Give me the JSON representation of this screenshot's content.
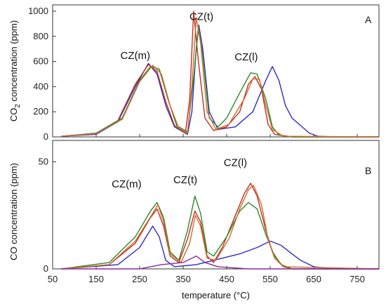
{
  "chart_data": [
    {
      "panel": "A",
      "type": "line",
      "ylabel_parts": [
        "CO",
        "2",
        " concentration (ppm)"
      ],
      "ylim": [
        0,
        1050
      ],
      "yticks": [
        0,
        200,
        400,
        600,
        800,
        1000
      ],
      "xlim": [
        50,
        800
      ],
      "annotations": [
        {
          "text": "CZ(m)",
          "x": 240,
          "y": 620
        },
        {
          "text": "CZ(t)",
          "x": 392,
          "y": 930
        },
        {
          "text": "CZ(l)",
          "x": 495,
          "y": 610
        }
      ],
      "series": [
        {
          "color": "#2c2cc8",
          "points": [
            [
              70,
              5
            ],
            [
              150,
              20
            ],
            [
              200,
              120
            ],
            [
              240,
              400
            ],
            [
              270,
              585
            ],
            [
              290,
              500
            ],
            [
              310,
              250
            ],
            [
              330,
              80
            ],
            [
              360,
              20
            ],
            [
              370,
              200
            ],
            [
              380,
              700
            ],
            [
              386,
              890
            ],
            [
              395,
              700
            ],
            [
              410,
              200
            ],
            [
              430,
              60
            ],
            [
              470,
              80
            ],
            [
              510,
              200
            ],
            [
              540,
              450
            ],
            [
              555,
              560
            ],
            [
              570,
              450
            ],
            [
              585,
              250
            ],
            [
              600,
              150
            ],
            [
              620,
              90
            ],
            [
              640,
              30
            ],
            [
              660,
              5
            ],
            [
              700,
              0
            ],
            [
              800,
              0
            ]
          ]
        },
        {
          "color": "#c03020",
          "points": [
            [
              70,
              5
            ],
            [
              150,
              25
            ],
            [
              200,
              130
            ],
            [
              240,
              420
            ],
            [
              270,
              575
            ],
            [
              290,
              520
            ],
            [
              310,
              280
            ],
            [
              330,
              90
            ],
            [
              355,
              30
            ],
            [
              365,
              300
            ],
            [
              374,
              1000
            ],
            [
              385,
              600
            ],
            [
              400,
              150
            ],
            [
              420,
              50
            ],
            [
              450,
              80
            ],
            [
              480,
              200
            ],
            [
              500,
              420
            ],
            [
              515,
              480
            ],
            [
              530,
              380
            ],
            [
              545,
              100
            ],
            [
              560,
              20
            ],
            [
              600,
              0
            ],
            [
              800,
              0
            ]
          ]
        },
        {
          "color": "#2a8a2a",
          "points": [
            [
              70,
              5
            ],
            [
              150,
              30
            ],
            [
              210,
              150
            ],
            [
              250,
              450
            ],
            [
              275,
              560
            ],
            [
              295,
              540
            ],
            [
              315,
              300
            ],
            [
              335,
              90
            ],
            [
              360,
              40
            ],
            [
              375,
              500
            ],
            [
              385,
              880
            ],
            [
              395,
              650
            ],
            [
              410,
              150
            ],
            [
              430,
              80
            ],
            [
              450,
              150
            ],
            [
              480,
              350
            ],
            [
              505,
              510
            ],
            [
              520,
              500
            ],
            [
              540,
              300
            ],
            [
              555,
              80
            ],
            [
              570,
              15
            ],
            [
              600,
              0
            ],
            [
              800,
              0
            ]
          ]
        },
        {
          "color": "#d06a30",
          "points": [
            [
              70,
              5
            ],
            [
              150,
              25
            ],
            [
              210,
              140
            ],
            [
              250,
              440
            ],
            [
              280,
              570
            ],
            [
              300,
              500
            ],
            [
              320,
              250
            ],
            [
              340,
              70
            ],
            [
              360,
              30
            ],
            [
              370,
              400
            ],
            [
              380,
              950
            ],
            [
              390,
              750
            ],
            [
              405,
              200
            ],
            [
              425,
              60
            ],
            [
              455,
              100
            ],
            [
              490,
              300
            ],
            [
              510,
              460
            ],
            [
              525,
              460
            ],
            [
              540,
              250
            ],
            [
              555,
              60
            ],
            [
              580,
              5
            ],
            [
              800,
              0
            ]
          ]
        }
      ]
    },
    {
      "panel": "B",
      "type": "line",
      "ylabel": "CO concentration (ppm)",
      "ylim": [
        0,
        60
      ],
      "yticks": [
        0,
        50
      ],
      "xlim": [
        50,
        800
      ],
      "xticks": [
        50,
        150,
        250,
        350,
        450,
        550,
        650,
        750
      ],
      "xlabel": "temperature (°C)",
      "annotations": [
        {
          "text": "CZ(m)",
          "x": 220,
          "y": 38
        },
        {
          "text": "CZ(t)",
          "x": 355,
          "y": 40
        },
        {
          "text": "CZ(l)",
          "x": 470,
          "y": 48
        }
      ],
      "series": [
        {
          "color": "#2c2cc8",
          "points": [
            [
              70,
              0
            ],
            [
              200,
              2
            ],
            [
              250,
              10
            ],
            [
              280,
              20
            ],
            [
              295,
              15
            ],
            [
              310,
              4
            ],
            [
              330,
              1
            ],
            [
              380,
              2
            ],
            [
              420,
              4
            ],
            [
              480,
              7
            ],
            [
              520,
              10
            ],
            [
              550,
              13
            ],
            [
              575,
              11
            ],
            [
              600,
              7
            ],
            [
              620,
              4
            ],
            [
              650,
              1
            ],
            [
              700,
              0
            ],
            [
              800,
              0
            ]
          ]
        },
        {
          "color": "#c03020",
          "points": [
            [
              70,
              0
            ],
            [
              180,
              2
            ],
            [
              240,
              12
            ],
            [
              275,
              24
            ],
            [
              290,
              28
            ],
            [
              305,
              20
            ],
            [
              320,
              6
            ],
            [
              340,
              3
            ],
            [
              360,
              14
            ],
            [
              377,
              27
            ],
            [
              390,
              22
            ],
            [
              405,
              6
            ],
            [
              420,
              3
            ],
            [
              440,
              10
            ],
            [
              470,
              25
            ],
            [
              490,
              35
            ],
            [
              505,
              40
            ],
            [
              520,
              34
            ],
            [
              540,
              18
            ],
            [
              555,
              8
            ],
            [
              575,
              2
            ],
            [
              600,
              0
            ],
            [
              800,
              0
            ]
          ]
        },
        {
          "color": "#2a8a2a",
          "points": [
            [
              70,
              0
            ],
            [
              180,
              3
            ],
            [
              240,
              15
            ],
            [
              275,
              27
            ],
            [
              290,
              31
            ],
            [
              305,
              24
            ],
            [
              320,
              8
            ],
            [
              340,
              4
            ],
            [
              360,
              18
            ],
            [
              377,
              34
            ],
            [
              390,
              26
            ],
            [
              405,
              8
            ],
            [
              420,
              6
            ],
            [
              450,
              15
            ],
            [
              480,
              27
            ],
            [
              500,
              31
            ],
            [
              520,
              28
            ],
            [
              540,
              16
            ],
            [
              560,
              6
            ],
            [
              580,
              1
            ],
            [
              600,
              0
            ],
            [
              800,
              0
            ]
          ]
        },
        {
          "color": "#d06a30",
          "points": [
            [
              70,
              0
            ],
            [
              180,
              2
            ],
            [
              240,
              13
            ],
            [
              280,
              26
            ],
            [
              292,
              30
            ],
            [
              305,
              22
            ],
            [
              320,
              7
            ],
            [
              345,
              3
            ],
            [
              365,
              12
            ],
            [
              378,
              25
            ],
            [
              390,
              20
            ],
            [
              405,
              5
            ],
            [
              425,
              4
            ],
            [
              455,
              14
            ],
            [
              480,
              28
            ],
            [
              500,
              37
            ],
            [
              512,
              39
            ],
            [
              530,
              30
            ],
            [
              545,
              14
            ],
            [
              560,
              5
            ],
            [
              580,
              1
            ],
            [
              800,
              0
            ]
          ]
        },
        {
          "color": "#8a2aa0",
          "points": [
            [
              70,
              0
            ],
            [
              250,
              0
            ],
            [
              300,
              2
            ],
            [
              350,
              3
            ],
            [
              380,
              6
            ],
            [
              400,
              3
            ],
            [
              430,
              1
            ],
            [
              500,
              0
            ],
            [
              800,
              0
            ]
          ]
        }
      ]
    }
  ]
}
